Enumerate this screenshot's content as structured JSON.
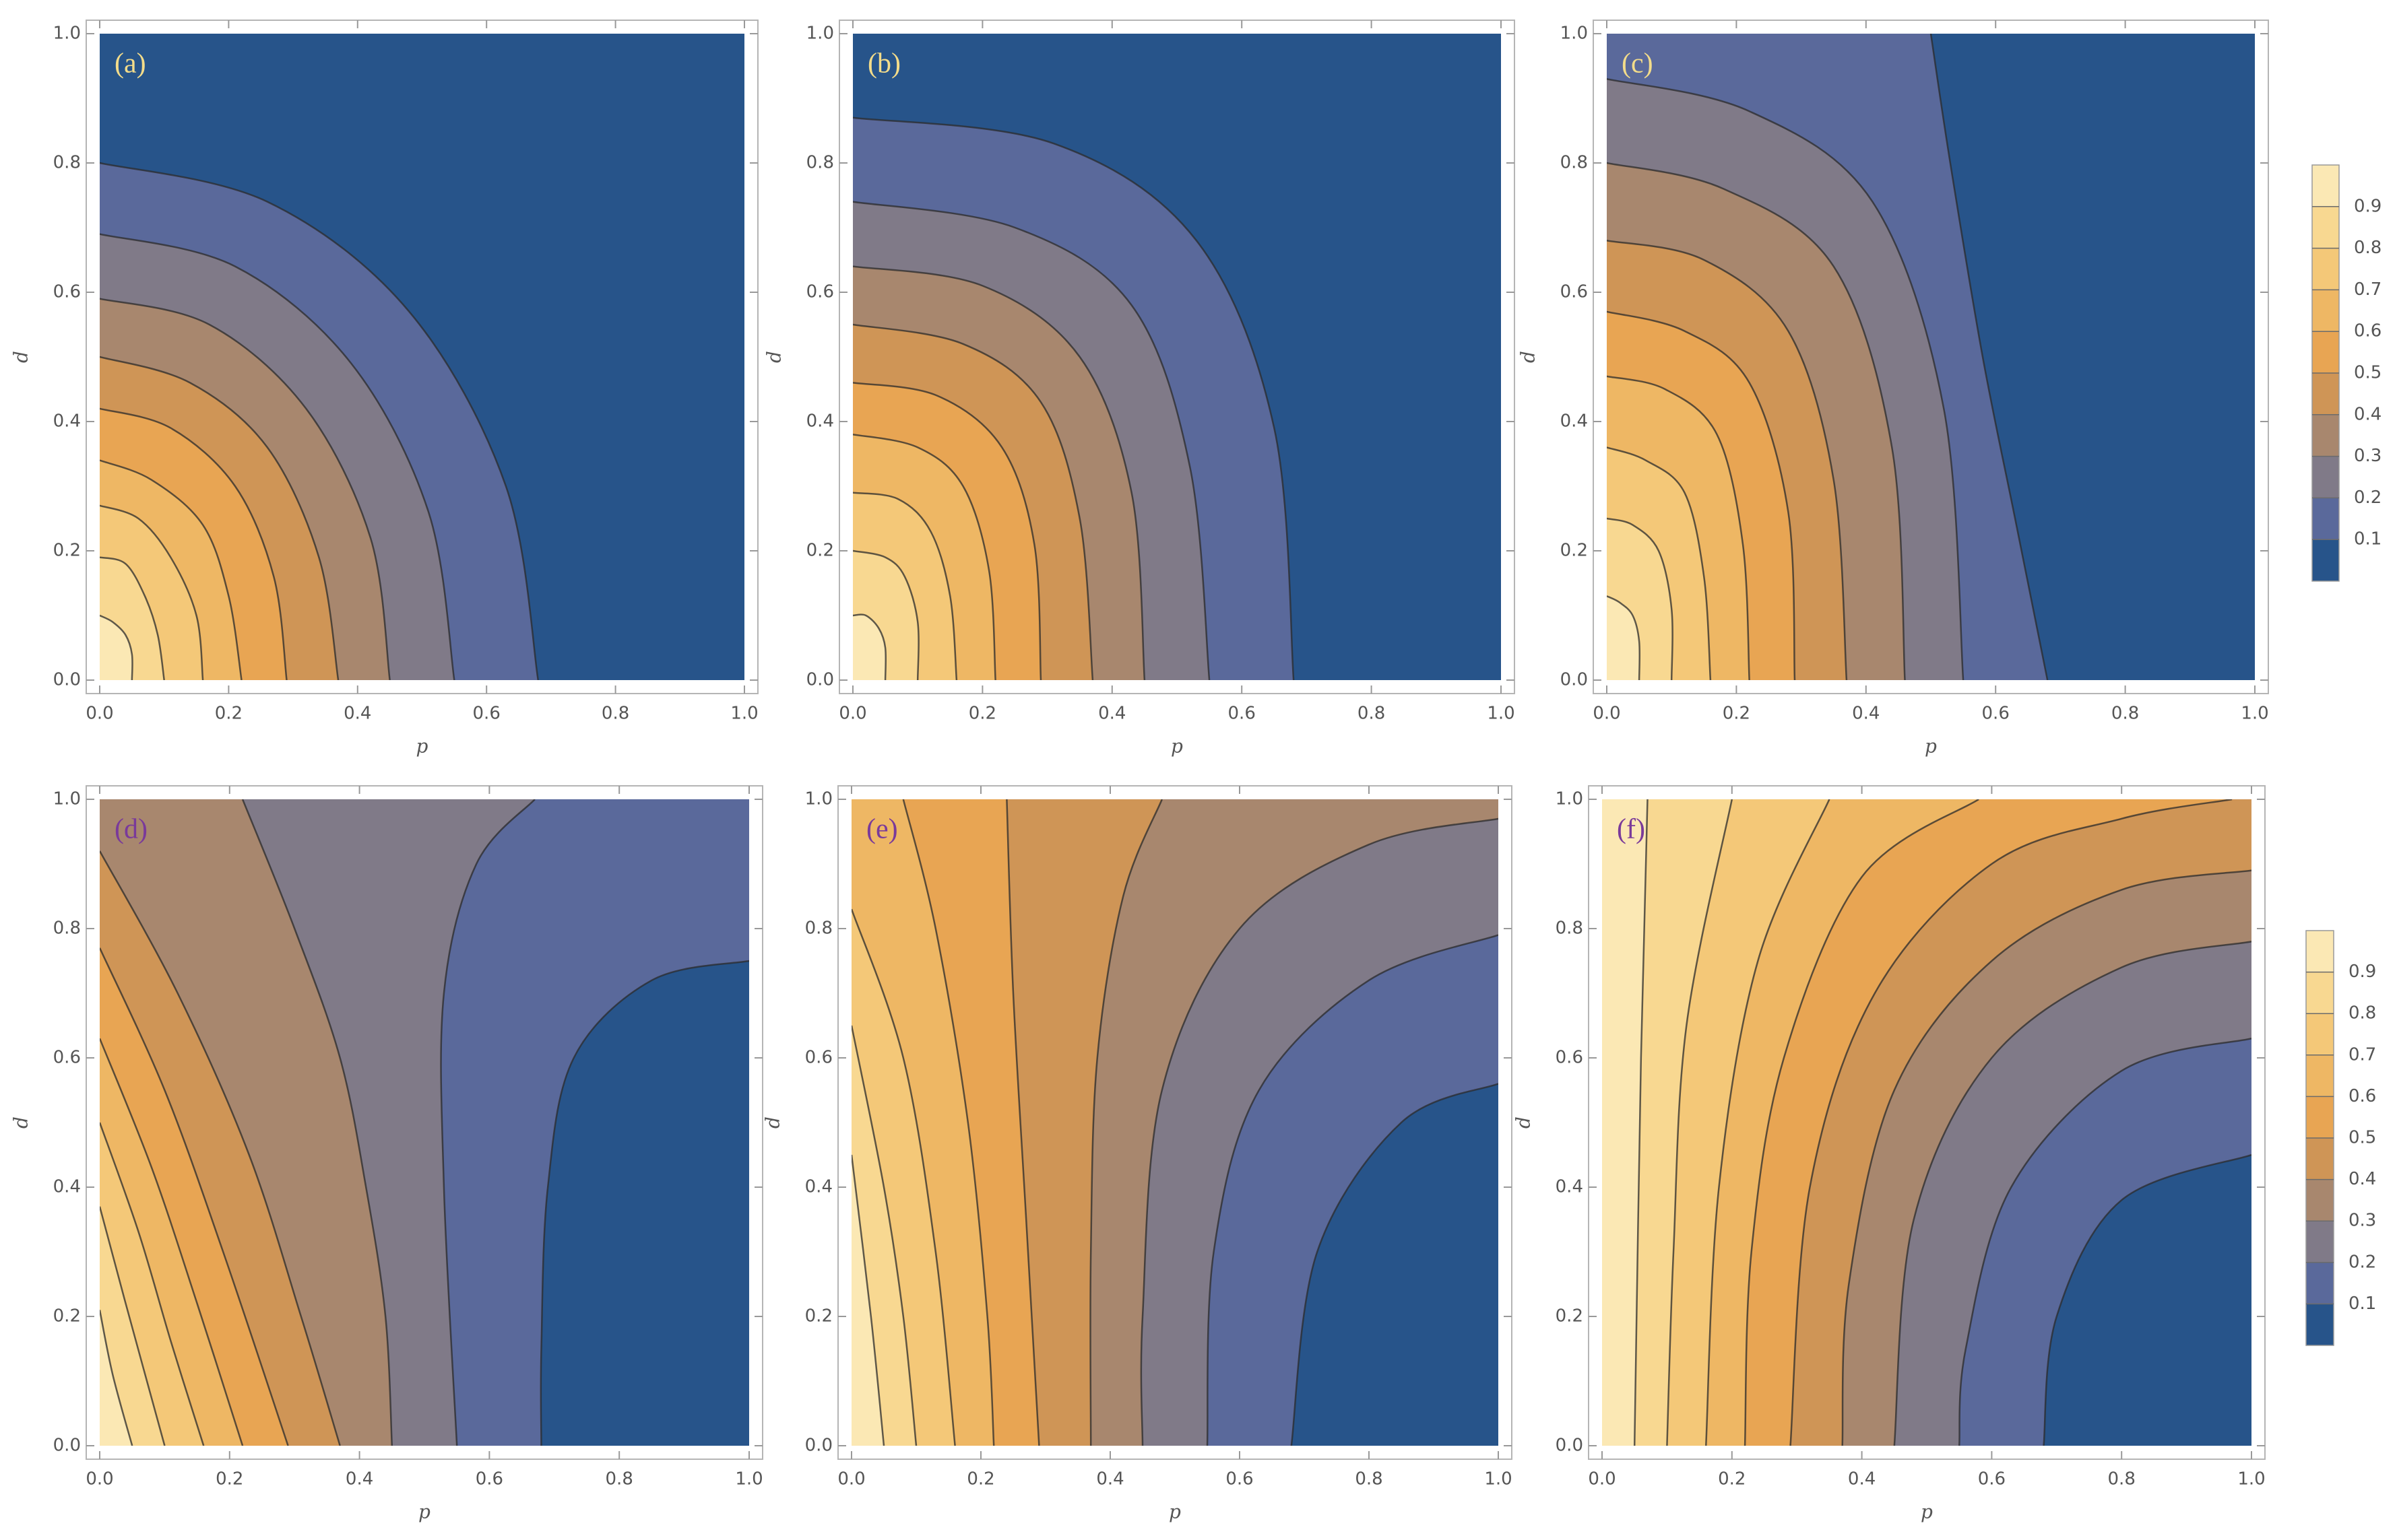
{
  "chart_data": [
    {
      "type": "contour",
      "label": "(a)",
      "label_color": "#f3dc8a",
      "xlabel": "p",
      "ylabel": "d",
      "xlim": [
        0,
        1
      ],
      "ylim": [
        0,
        1
      ],
      "xticks": [
        {
          "value": 0,
          "label": "0.0"
        },
        0.2,
        0.4,
        0.6,
        0.8,
        {
          "value": 1,
          "label": "1.0"
        }
      ],
      "yticks": [
        {
          "value": 0,
          "label": "0.0"
        },
        0.2,
        0.4,
        0.6,
        0.8,
        {
          "value": 1,
          "label": "1.0"
        }
      ],
      "levels": [
        0.1,
        0.2,
        0.3,
        0.4,
        0.5,
        0.6,
        0.7,
        0.8,
        0.9
      ],
      "band_colors": [
        "#27548a",
        "#5a699b",
        "#807a88",
        "#a8876e",
        "#cf9556",
        "#e8a553",
        "#eeb764",
        "#f4c878",
        "#f8d891",
        "#fbe8b4"
      ],
      "contours": [
        {
          "x": [
            0,
            0.26,
            0.48,
            0.63,
            0.68
          ],
          "y": [
            0.8,
            0.74,
            0.57,
            0.3,
            0
          ]
        },
        {
          "x": [
            0,
            0.21,
            0.39,
            0.51,
            0.55
          ],
          "y": [
            0.69,
            0.64,
            0.49,
            0.26,
            0
          ]
        },
        {
          "x": [
            0,
            0.17,
            0.32,
            0.42,
            0.45
          ],
          "y": [
            0.59,
            0.55,
            0.42,
            0.22,
            0
          ]
        },
        {
          "x": [
            0,
            0.14,
            0.26,
            0.34,
            0.37
          ],
          "y": [
            0.5,
            0.46,
            0.36,
            0.19,
            0
          ]
        },
        {
          "x": [
            0,
            0.11,
            0.21,
            0.27,
            0.29
          ],
          "y": [
            0.42,
            0.39,
            0.3,
            0.16,
            0
          ]
        },
        {
          "x": [
            0,
            0.08,
            0.16,
            0.2,
            0.22
          ],
          "y": [
            0.34,
            0.31,
            0.24,
            0.13,
            0
          ]
        },
        {
          "x": [
            0,
            0.06,
            0.11,
            0.15,
            0.16
          ],
          "y": [
            0.27,
            0.25,
            0.19,
            0.1,
            0
          ]
        },
        {
          "x": [
            0,
            0.04,
            0.07,
            0.09,
            0.1
          ],
          "y": [
            0.19,
            0.18,
            0.13,
            0.07,
            0
          ]
        },
        {
          "x": [
            0,
            0.02,
            0.04,
            0.05,
            0.05
          ],
          "y": [
            0.1,
            0.09,
            0.07,
            0.04,
            0
          ]
        }
      ]
    },
    {
      "type": "contour",
      "label": "(b)",
      "label_color": "#f3dc8a",
      "xlabel": "p",
      "ylabel": "d",
      "xlim": [
        0,
        1
      ],
      "ylim": [
        0,
        1
      ],
      "xticks": [
        {
          "value": 0,
          "label": "0.0"
        },
        0.2,
        0.4,
        0.6,
        0.8,
        {
          "value": 1,
          "label": "1.0"
        }
      ],
      "yticks": [
        {
          "value": 0,
          "label": "0.0"
        },
        0.2,
        0.4,
        0.6,
        0.8,
        {
          "value": 1,
          "label": "1.0"
        }
      ],
      "levels": [
        0.1,
        0.2,
        0.3,
        0.4,
        0.5,
        0.6,
        0.7,
        0.8,
        0.9
      ],
      "band_colors": [
        "#27548a",
        "#5a699b",
        "#807a88",
        "#a8876e",
        "#cf9556",
        "#e8a553",
        "#eeb764",
        "#f4c878",
        "#f8d891",
        "#fbe8b4"
      ],
      "contours": [
        {
          "x": [
            0,
            0.31,
            0.53,
            0.65,
            0.68
          ],
          "y": [
            0.87,
            0.83,
            0.68,
            0.39,
            0
          ]
        },
        {
          "x": [
            0,
            0.25,
            0.43,
            0.52,
            0.55
          ],
          "y": [
            0.74,
            0.7,
            0.58,
            0.33,
            0
          ]
        },
        {
          "x": [
            0,
            0.2,
            0.35,
            0.43,
            0.45
          ],
          "y": [
            0.64,
            0.61,
            0.5,
            0.29,
            0
          ]
        },
        {
          "x": [
            0,
            0.17,
            0.29,
            0.35,
            0.37
          ],
          "y": [
            0.55,
            0.52,
            0.43,
            0.25,
            0
          ]
        },
        {
          "x": [
            0,
            0.13,
            0.23,
            0.28,
            0.29
          ],
          "y": [
            0.46,
            0.44,
            0.36,
            0.21,
            0
          ]
        },
        {
          "x": [
            0,
            0.1,
            0.17,
            0.21,
            0.22
          ],
          "y": [
            0.38,
            0.36,
            0.3,
            0.17,
            0
          ]
        },
        {
          "x": [
            0,
            0.07,
            0.12,
            0.15,
            0.16
          ],
          "y": [
            0.29,
            0.28,
            0.23,
            0.13,
            0
          ]
        },
        {
          "x": [
            0,
            0.05,
            0.08,
            0.1,
            0.1
          ],
          "y": [
            0.2,
            0.19,
            0.16,
            0.09,
            0
          ]
        },
        {
          "x": [
            0,
            0.02,
            0.04,
            0.05,
            0.05
          ],
          "y": [
            0.1,
            0.1,
            0.08,
            0.05,
            0
          ]
        }
      ]
    },
    {
      "type": "contour",
      "label": "(c)",
      "label_color": "#f3dc8a",
      "xlabel": "p",
      "ylabel": "d",
      "xlim": [
        0,
        1
      ],
      "ylim": [
        0,
        1
      ],
      "xticks": [
        {
          "value": 0,
          "label": "0.0"
        },
        0.2,
        0.4,
        0.6,
        0.8,
        {
          "value": 1,
          "label": "1.0"
        }
      ],
      "yticks": [
        {
          "value": 0,
          "label": "0.0"
        },
        0.2,
        0.4,
        0.6,
        0.8,
        {
          "value": 1,
          "label": "1.0"
        }
      ],
      "levels": [
        0.1,
        0.2,
        0.3,
        0.4,
        0.5,
        0.6,
        0.7,
        0.8,
        0.9
      ],
      "band_colors": [
        "#27548a",
        "#5a699b",
        "#807a88",
        "#a8876e",
        "#cf9556",
        "#e8a553",
        "#eeb764",
        "#f4c878",
        "#f8d891",
        "#fbe8b4"
      ],
      "colorbar": true,
      "zlim": [
        0,
        1
      ],
      "contours": [
        {
          "x": [
            0.5,
            0.53,
            0.58,
            0.63,
            0.68
          ],
          "y": [
            1,
            0.8,
            0.5,
            0.25,
            0
          ]
        },
        {
          "x": [
            0,
            0.22,
            0.41,
            0.52,
            0.55
          ],
          "y": [
            0.93,
            0.88,
            0.74,
            0.42,
            0
          ]
        },
        {
          "x": [
            0,
            0.18,
            0.35,
            0.44,
            0.46
          ],
          "y": [
            0.8,
            0.76,
            0.64,
            0.36,
            0
          ]
        },
        {
          "x": [
            0,
            0.15,
            0.28,
            0.35,
            0.37
          ],
          "y": [
            0.68,
            0.65,
            0.54,
            0.31,
            0
          ]
        },
        {
          "x": [
            0,
            0.12,
            0.22,
            0.28,
            0.29
          ],
          "y": [
            0.57,
            0.54,
            0.46,
            0.26,
            0
          ]
        },
        {
          "x": [
            0,
            0.09,
            0.17,
            0.21,
            0.22
          ],
          "y": [
            0.47,
            0.45,
            0.38,
            0.21,
            0
          ]
        },
        {
          "x": [
            0,
            0.06,
            0.12,
            0.15,
            0.16
          ],
          "y": [
            0.36,
            0.34,
            0.29,
            0.16,
            0
          ]
        },
        {
          "x": [
            0,
            0.04,
            0.08,
            0.1,
            0.1
          ],
          "y": [
            0.25,
            0.24,
            0.2,
            0.11,
            0
          ]
        },
        {
          "x": [
            0,
            0.02,
            0.04,
            0.05,
            0.05
          ],
          "y": [
            0.13,
            0.12,
            0.1,
            0.06,
            0
          ]
        }
      ]
    },
    {
      "type": "contour",
      "label": "(d)",
      "label_color": "#7a3a9a",
      "xlabel": "p",
      "ylabel": "d",
      "xlim": [
        0,
        1
      ],
      "ylim": [
        0,
        1
      ],
      "xticks": [
        {
          "value": 0,
          "label": "0.0"
        },
        0.2,
        0.4,
        0.6,
        0.8,
        {
          "value": 1,
          "label": "1.0"
        }
      ],
      "yticks": [
        {
          "value": 0,
          "label": "0.0"
        },
        0.2,
        0.4,
        0.6,
        0.8,
        {
          "value": 1,
          "label": "1.0"
        }
      ],
      "levels": [
        0.1,
        0.2,
        0.3,
        0.4,
        0.5,
        0.6,
        0.7,
        0.8,
        0.9
      ],
      "band_colors": [
        "#27548a",
        "#5a699b",
        "#807a88",
        "#a8876e",
        "#cf9556",
        "#e8a553",
        "#eeb764",
        "#f4c878",
        "#f8d891",
        "#fbe8b4"
      ],
      "contours": [
        {
          "x": [
            1,
            0.85,
            0.73,
            0.69,
            0.68,
            0.68
          ],
          "y": [
            0.75,
            0.72,
            0.6,
            0.4,
            0.15,
            0
          ]
        },
        {
          "x": [
            0.67,
            0.58,
            0.53,
            0.53,
            0.55
          ],
          "y": [
            1,
            0.9,
            0.7,
            0.4,
            0
          ]
        },
        {
          "x": [
            0.22,
            0.3,
            0.37,
            0.41,
            0.44,
            0.45
          ],
          "y": [
            1,
            0.8,
            0.6,
            0.4,
            0.2,
            0
          ]
        },
        {
          "x": [
            0,
            0.12,
            0.23,
            0.31,
            0.37
          ],
          "y": [
            0.92,
            0.7,
            0.45,
            0.2,
            0
          ]
        },
        {
          "x": [
            0,
            0.1,
            0.19,
            0.29
          ],
          "y": [
            0.77,
            0.55,
            0.3,
            0
          ]
        },
        {
          "x": [
            0,
            0.08,
            0.15,
            0.22
          ],
          "y": [
            0.63,
            0.43,
            0.22,
            0
          ]
        },
        {
          "x": [
            0,
            0.06,
            0.11,
            0.16
          ],
          "y": [
            0.5,
            0.33,
            0.16,
            0
          ]
        },
        {
          "x": [
            0,
            0.04,
            0.1
          ],
          "y": [
            0.37,
            0.22,
            0
          ]
        },
        {
          "x": [
            0,
            0.02,
            0.05
          ],
          "y": [
            0.21,
            0.11,
            0
          ]
        }
      ]
    },
    {
      "type": "contour",
      "label": "(e)",
      "label_color": "#7a3a9a",
      "xlabel": "p",
      "ylabel": "d",
      "xlim": [
        0,
        1
      ],
      "ylim": [
        0,
        1
      ],
      "xticks": [
        {
          "value": 0,
          "label": "0.0"
        },
        0.2,
        0.4,
        0.6,
        0.8,
        {
          "value": 1,
          "label": "1.0"
        }
      ],
      "yticks": [
        {
          "value": 0,
          "label": "0.0"
        },
        0.2,
        0.4,
        0.6,
        0.8,
        {
          "value": 1,
          "label": "1.0"
        }
      ],
      "levels": [
        0.1,
        0.2,
        0.3,
        0.4,
        0.5,
        0.6,
        0.7,
        0.8,
        0.9
      ],
      "band_colors": [
        "#27548a",
        "#5a699b",
        "#807a88",
        "#a8876e",
        "#cf9556",
        "#e8a553",
        "#eeb764",
        "#f4c878",
        "#f8d891",
        "#fbe8b4"
      ],
      "contours": [
        {
          "x": [
            1,
            0.85,
            0.72,
            0.68
          ],
          "y": [
            0.56,
            0.5,
            0.3,
            0
          ]
        },
        {
          "x": [
            1,
            0.8,
            0.63,
            0.56,
            0.55
          ],
          "y": [
            0.79,
            0.72,
            0.55,
            0.3,
            0
          ]
        },
        {
          "x": [
            1,
            0.8,
            0.6,
            0.48,
            0.45,
            0.45
          ],
          "y": [
            0.97,
            0.93,
            0.8,
            0.55,
            0.2,
            0
          ]
        },
        {
          "x": [
            0.48,
            0.42,
            0.38,
            0.37,
            0.37
          ],
          "y": [
            1,
            0.85,
            0.6,
            0.3,
            0
          ]
        },
        {
          "x": [
            0.24,
            0.25,
            0.27,
            0.29
          ],
          "y": [
            1,
            0.7,
            0.35,
            0
          ]
        },
        {
          "x": [
            0.08,
            0.13,
            0.18,
            0.21,
            0.22
          ],
          "y": [
            1,
            0.8,
            0.5,
            0.2,
            0
          ]
        },
        {
          "x": [
            0,
            0.08,
            0.13,
            0.16
          ],
          "y": [
            0.83,
            0.6,
            0.3,
            0
          ]
        },
        {
          "x": [
            0,
            0.05,
            0.08,
            0.1
          ],
          "y": [
            0.65,
            0.4,
            0.2,
            0
          ]
        },
        {
          "x": [
            0,
            0.03,
            0.05
          ],
          "y": [
            0.45,
            0.2,
            0
          ]
        }
      ]
    },
    {
      "type": "contour",
      "label": "(f)",
      "label_color": "#7a3a9a",
      "xlabel": "p",
      "ylabel": "d",
      "xlim": [
        0,
        1
      ],
      "ylim": [
        0,
        1
      ],
      "xticks": [
        {
          "value": 0,
          "label": "0.0"
        },
        0.2,
        0.4,
        0.6,
        0.8,
        {
          "value": 1,
          "label": "1.0"
        }
      ],
      "yticks": [
        {
          "value": 0,
          "label": "0.0"
        },
        0.2,
        0.4,
        0.6,
        0.8,
        {
          "value": 1,
          "label": "1.0"
        }
      ],
      "levels": [
        0.1,
        0.2,
        0.3,
        0.4,
        0.5,
        0.6,
        0.7,
        0.8,
        0.9
      ],
      "band_colors": [
        "#27548a",
        "#5a699b",
        "#807a88",
        "#a8876e",
        "#cf9556",
        "#e8a553",
        "#eeb764",
        "#f4c878",
        "#f8d891",
        "#fbe8b4"
      ],
      "colorbar": true,
      "zlim": [
        0,
        1
      ],
      "contours": [
        {
          "x": [
            1,
            0.8,
            0.7,
            0.68
          ],
          "y": [
            0.45,
            0.38,
            0.2,
            0
          ]
        },
        {
          "x": [
            1,
            0.8,
            0.63,
            0.56,
            0.55
          ],
          "y": [
            0.63,
            0.58,
            0.4,
            0.15,
            0
          ]
        },
        {
          "x": [
            1,
            0.8,
            0.6,
            0.48,
            0.45
          ],
          "y": [
            0.78,
            0.74,
            0.6,
            0.35,
            0
          ]
        },
        {
          "x": [
            1,
            0.8,
            0.6,
            0.45,
            0.38,
            0.37
          ],
          "y": [
            0.89,
            0.86,
            0.75,
            0.55,
            0.25,
            0
          ]
        },
        {
          "x": [
            0.97,
            0.8,
            0.6,
            0.42,
            0.32,
            0.29
          ],
          "y": [
            1,
            0.97,
            0.9,
            0.7,
            0.4,
            0
          ]
        },
        {
          "x": [
            0.58,
            0.4,
            0.28,
            0.23,
            0.22
          ],
          "y": [
            1,
            0.88,
            0.6,
            0.3,
            0
          ]
        },
        {
          "x": [
            0.35,
            0.24,
            0.18,
            0.16
          ],
          "y": [
            1,
            0.75,
            0.4,
            0
          ]
        },
        {
          "x": [
            0.2,
            0.13,
            0.11,
            0.1
          ],
          "y": [
            1,
            0.65,
            0.3,
            0
          ]
        },
        {
          "x": [
            0.07,
            0.06,
            0.05
          ],
          "y": [
            1,
            0.6,
            0
          ]
        }
      ]
    }
  ]
}
